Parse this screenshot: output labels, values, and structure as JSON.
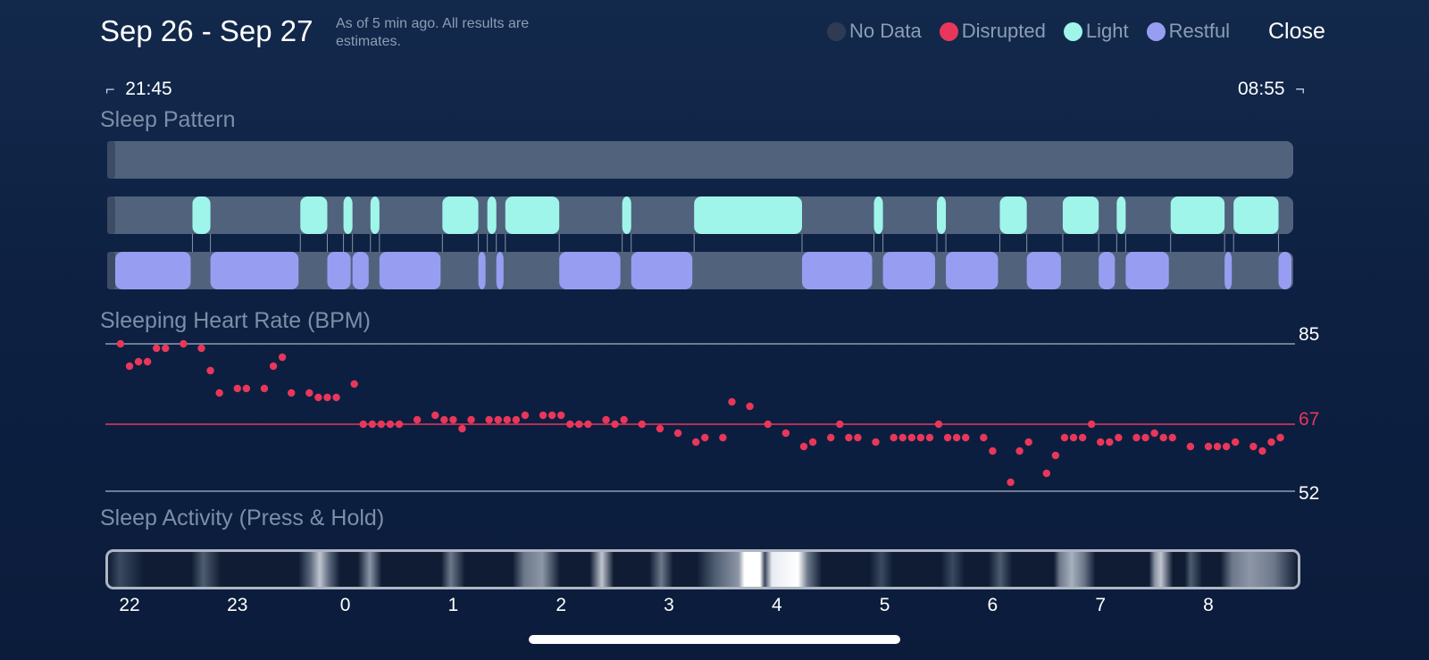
{
  "header": {
    "date_range": "Sep 26 - Sep 27",
    "note": "As of 5 min ago. All results are estimates.",
    "close_label": "Close"
  },
  "legend": [
    {
      "label": "No Data",
      "color": "#2f3b52",
      "icon": "no-data-dot"
    },
    {
      "label": "Disrupted",
      "color": "#e8375a",
      "icon": "disrupted-dot"
    },
    {
      "label": "Light",
      "color": "#9ff5ea",
      "icon": "light-dot"
    },
    {
      "label": "Restful",
      "color": "#979ef2",
      "icon": "restful-dot"
    }
  ],
  "timeline": {
    "start": "21:45",
    "end": "08:55"
  },
  "sleep_pattern": {
    "label": "Sleep Pattern",
    "disrupted": [],
    "light": [
      [
        "22:35",
        "22:45"
      ],
      [
        "23:35",
        "23:50"
      ],
      [
        "23:59",
        "00:04"
      ],
      [
        "00:14",
        "00:19"
      ],
      [
        "00:54",
        "01:14"
      ],
      [
        "01:19",
        "01:24"
      ],
      [
        "01:29",
        "01:59"
      ],
      [
        "02:34",
        "02:39"
      ],
      [
        "03:14",
        "04:14"
      ],
      [
        "04:54",
        "04:59"
      ],
      [
        "05:29",
        "05:34"
      ],
      [
        "06:04",
        "06:19"
      ],
      [
        "06:39",
        "06:59"
      ],
      [
        "07:09",
        "07:14"
      ],
      [
        "07:39",
        "08:09"
      ],
      [
        "08:14",
        "08:39"
      ]
    ],
    "restful": [
      [
        "21:50",
        "22:35"
      ],
      [
        "22:45",
        "23:35"
      ],
      [
        "23:50",
        "00:04"
      ],
      [
        "00:04",
        "00:14"
      ],
      [
        "00:19",
        "00:54"
      ],
      [
        "01:14",
        "01:19"
      ],
      [
        "01:24",
        "01:29"
      ],
      [
        "01:59",
        "02:34"
      ],
      [
        "02:39",
        "03:14"
      ],
      [
        "04:14",
        "04:54"
      ],
      [
        "04:59",
        "05:29"
      ],
      [
        "05:34",
        "06:04"
      ],
      [
        "06:19",
        "06:39"
      ],
      [
        "06:59",
        "07:09"
      ],
      [
        "07:14",
        "07:39"
      ],
      [
        "08:09",
        "08:14"
      ],
      [
        "08:39",
        "08:49"
      ]
    ]
  },
  "heart_rate": {
    "label": "Sleeping Heart Rate (BPM)",
    "max_label": "85",
    "avg_label": "67",
    "min_label": "52",
    "max": 85,
    "avg": 67,
    "min": 52,
    "points": [
      [
        "21:55",
        85
      ],
      [
        "22:00",
        80
      ],
      [
        "22:05",
        81
      ],
      [
        "22:10",
        81
      ],
      [
        "22:15",
        84
      ],
      [
        "22:20",
        84
      ],
      [
        "22:30",
        85
      ],
      [
        "22:40",
        84
      ],
      [
        "22:45",
        79
      ],
      [
        "22:50",
        74
      ],
      [
        "23:00",
        75
      ],
      [
        "23:05",
        75
      ],
      [
        "23:15",
        75
      ],
      [
        "23:20",
        80
      ],
      [
        "23:25",
        82
      ],
      [
        "23:30",
        74
      ],
      [
        "23:40",
        74
      ],
      [
        "23:45",
        73
      ],
      [
        "23:50",
        73
      ],
      [
        "23:55",
        73
      ],
      [
        "00:05",
        76
      ],
      [
        "00:10",
        67
      ],
      [
        "00:15",
        67
      ],
      [
        "00:20",
        67
      ],
      [
        "00:25",
        67
      ],
      [
        "00:30",
        67
      ],
      [
        "00:40",
        68
      ],
      [
        "00:50",
        69
      ],
      [
        "00:55",
        68
      ],
      [
        "01:00",
        68
      ],
      [
        "01:05",
        66
      ],
      [
        "01:10",
        68
      ],
      [
        "01:20",
        68
      ],
      [
        "01:25",
        68
      ],
      [
        "01:30",
        68
      ],
      [
        "01:35",
        68
      ],
      [
        "01:40",
        69
      ],
      [
        "01:50",
        69
      ],
      [
        "01:55",
        69
      ],
      [
        "02:00",
        69
      ],
      [
        "02:05",
        67
      ],
      [
        "02:10",
        67
      ],
      [
        "02:15",
        67
      ],
      [
        "02:25",
        68
      ],
      [
        "02:30",
        67
      ],
      [
        "02:35",
        68
      ],
      [
        "02:45",
        67
      ],
      [
        "02:55",
        66
      ],
      [
        "03:05",
        65
      ],
      [
        "03:15",
        63
      ],
      [
        "03:20",
        64
      ],
      [
        "03:30",
        64
      ],
      [
        "03:35",
        72
      ],
      [
        "03:45",
        71
      ],
      [
        "03:55",
        67
      ],
      [
        "04:05",
        65
      ],
      [
        "04:15",
        62
      ],
      [
        "04:20",
        63
      ],
      [
        "04:30",
        64
      ],
      [
        "04:35",
        67
      ],
      [
        "04:40",
        64
      ],
      [
        "04:45",
        64
      ],
      [
        "04:55",
        63
      ],
      [
        "05:05",
        64
      ],
      [
        "05:10",
        64
      ],
      [
        "05:15",
        64
      ],
      [
        "05:20",
        64
      ],
      [
        "05:25",
        64
      ],
      [
        "05:30",
        67
      ],
      [
        "05:35",
        64
      ],
      [
        "05:40",
        64
      ],
      [
        "05:45",
        64
      ],
      [
        "05:55",
        64
      ],
      [
        "06:00",
        61
      ],
      [
        "06:10",
        54
      ],
      [
        "06:15",
        61
      ],
      [
        "06:20",
        63
      ],
      [
        "06:30",
        56
      ],
      [
        "06:35",
        60
      ],
      [
        "06:40",
        64
      ],
      [
        "06:45",
        64
      ],
      [
        "06:50",
        64
      ],
      [
        "06:55",
        67
      ],
      [
        "07:00",
        63
      ],
      [
        "07:05",
        63
      ],
      [
        "07:10",
        64
      ],
      [
        "07:20",
        64
      ],
      [
        "07:25",
        64
      ],
      [
        "07:30",
        65
      ],
      [
        "07:35",
        64
      ],
      [
        "07:40",
        64
      ],
      [
        "07:50",
        62
      ],
      [
        "08:00",
        62
      ],
      [
        "08:05",
        62
      ],
      [
        "08:10",
        62
      ],
      [
        "08:15",
        63
      ],
      [
        "08:25",
        62
      ],
      [
        "08:30",
        61
      ],
      [
        "08:35",
        63
      ],
      [
        "08:40",
        64
      ]
    ]
  },
  "sleep_activity": {
    "label": "Sleep Activity (Press & Hold)",
    "ticks": [
      "22",
      "23",
      "0",
      "1",
      "2",
      "3",
      "4",
      "5",
      "6",
      "7",
      "8"
    ]
  }
}
